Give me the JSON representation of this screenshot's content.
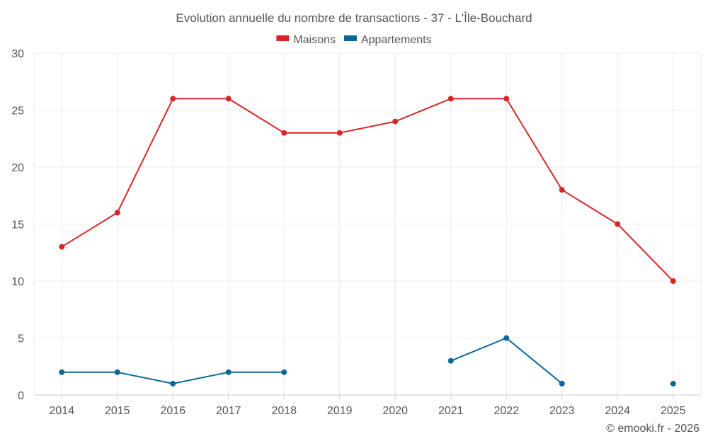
{
  "chart_data": {
    "type": "line",
    "title": "Evolution annuelle du nombre de transactions - 37 - L'Île-Bouchard",
    "x": [
      "2014",
      "2015",
      "2016",
      "2017",
      "2018",
      "2019",
      "2020",
      "2021",
      "2022",
      "2023",
      "2024",
      "2025"
    ],
    "ylim": [
      0,
      30
    ],
    "yticks": [
      0,
      5,
      10,
      15,
      20,
      25,
      30
    ],
    "grid": true,
    "legend_position": "top-center",
    "series": [
      {
        "name": "Maisons",
        "color": "#d62728",
        "values": [
          13,
          16,
          26,
          26,
          23,
          23,
          24,
          26,
          26,
          18,
          15,
          10
        ]
      },
      {
        "name": "Appartements",
        "color": "#0b6796",
        "values": [
          2,
          2,
          1,
          2,
          2,
          null,
          null,
          3,
          5,
          1,
          null,
          1
        ]
      }
    ],
    "credit": "© emooki.fr - 2026"
  }
}
